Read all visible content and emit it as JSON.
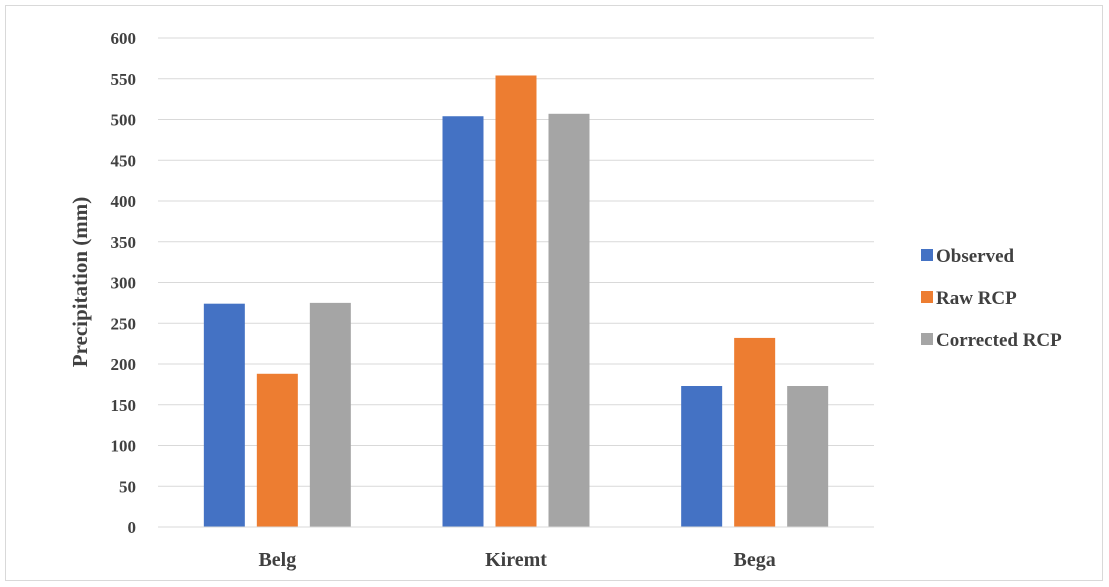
{
  "chart_data": {
    "type": "bar",
    "title": "",
    "xlabel": "",
    "ylabel": "Precipitation (mm)",
    "categories": [
      "Belg",
      "Kiremt",
      "Bega"
    ],
    "series": [
      {
        "name": "Observed",
        "color": "#4472c4",
        "values": [
          274,
          504,
          173
        ]
      },
      {
        "name": "Raw RCP",
        "color": "#ed7d31",
        "values": [
          188,
          554,
          232
        ]
      },
      {
        "name": "Corrected RCP",
        "color": "#a5a5a5",
        "values": [
          275,
          507,
          173
        ]
      }
    ],
    "ylim": [
      0,
      600
    ],
    "yticks": [
      0,
      50,
      100,
      150,
      200,
      250,
      300,
      350,
      400,
      450,
      500,
      550,
      600
    ],
    "grid": true,
    "legend_position": "right"
  }
}
